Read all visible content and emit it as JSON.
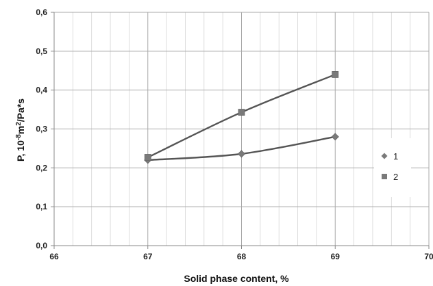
{
  "chart_data": {
    "type": "line",
    "xlabel": "Solid phase content, %",
    "ylabel_prefix": "P,  10",
    "ylabel_exp": "-8",
    "ylabel_mid": "m",
    "ylabel_sup2": "2",
    "ylabel_suffix": "/Pa*s",
    "xlim": [
      66,
      70
    ],
    "ylim": [
      0,
      0.6
    ],
    "x_ticks": [
      {
        "value": 66,
        "label": "66"
      },
      {
        "value": 67,
        "label": "67"
      },
      {
        "value": 68,
        "label": "68"
      },
      {
        "value": 69,
        "label": "69"
      },
      {
        "value": 70,
        "label": "70"
      }
    ],
    "y_ticks": [
      {
        "value": 0.0,
        "label": "0,0"
      },
      {
        "value": 0.1,
        "label": "0,1"
      },
      {
        "value": 0.2,
        "label": "0,2"
      },
      {
        "value": 0.3,
        "label": "0,3"
      },
      {
        "value": 0.4,
        "label": "0,4"
      },
      {
        "value": 0.5,
        "label": "0,5"
      },
      {
        "value": 0.6,
        "label": "0,6"
      }
    ],
    "minor_x_step": 0.2,
    "grid": true,
    "legend_position": "right",
    "series": [
      {
        "name": "1",
        "marker": "diamond",
        "color": "#555555",
        "x": [
          67,
          68,
          69
        ],
        "y": [
          0.22,
          0.236,
          0.28
        ]
      },
      {
        "name": "2",
        "marker": "square",
        "color": "#555555",
        "x": [
          67,
          68,
          69
        ],
        "y": [
          0.227,
          0.343,
          0.44
        ]
      }
    ]
  }
}
